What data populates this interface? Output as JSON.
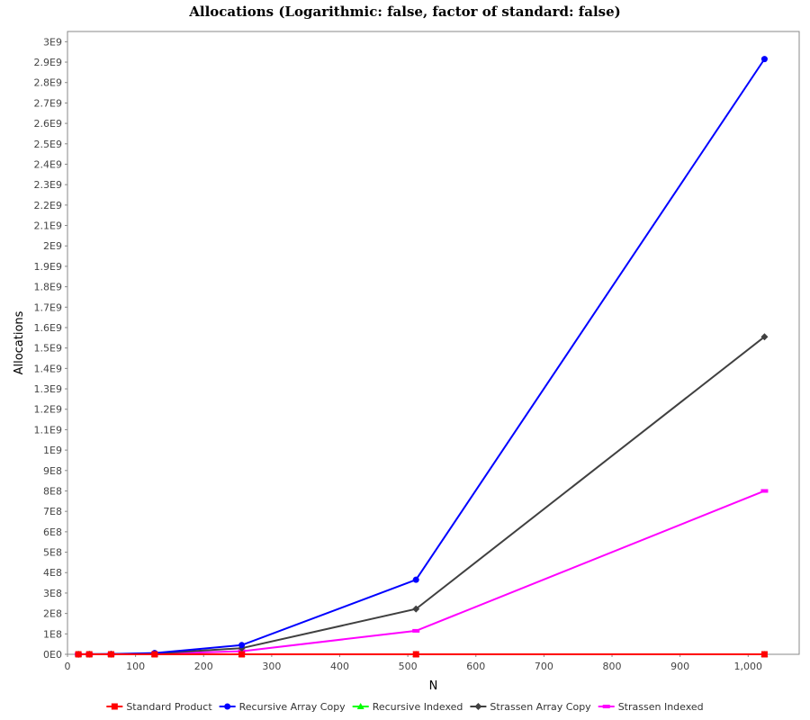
{
  "chart_data": {
    "type": "line",
    "title": "Allocations (Logarithmic: false, factor of standard: false)",
    "xlabel": "N",
    "ylabel": "Allocations",
    "xlim": [
      0,
      1075
    ],
    "ylim": [
      0,
      3050000000
    ],
    "x_ticks": [
      {
        "value": 0,
        "label": "0"
      },
      {
        "value": 100,
        "label": "100"
      },
      {
        "value": 200,
        "label": "200"
      },
      {
        "value": 300,
        "label": "300"
      },
      {
        "value": 400,
        "label": "400"
      },
      {
        "value": 500,
        "label": "500"
      },
      {
        "value": 600,
        "label": "600"
      },
      {
        "value": 700,
        "label": "700"
      },
      {
        "value": 800,
        "label": "800"
      },
      {
        "value": 900,
        "label": "900"
      },
      {
        "value": 1000,
        "label": "1,000"
      }
    ],
    "y_ticks": [
      {
        "value": 0,
        "label": "0E0"
      },
      {
        "value": 100000000,
        "label": "1E8"
      },
      {
        "value": 200000000,
        "label": "2E8"
      },
      {
        "value": 300000000,
        "label": "3E8"
      },
      {
        "value": 400000000,
        "label": "4E8"
      },
      {
        "value": 500000000,
        "label": "5E8"
      },
      {
        "value": 600000000,
        "label": "6E8"
      },
      {
        "value": 700000000,
        "label": "7E8"
      },
      {
        "value": 800000000,
        "label": "8E8"
      },
      {
        "value": 900000000,
        "label": "9E8"
      },
      {
        "value": 1000000000,
        "label": "1E9"
      },
      {
        "value": 1100000000,
        "label": "1.1E9"
      },
      {
        "value": 1200000000,
        "label": "1.2E9"
      },
      {
        "value": 1300000000,
        "label": "1.3E9"
      },
      {
        "value": 1400000000,
        "label": "1.4E9"
      },
      {
        "value": 1500000000,
        "label": "1.5E9"
      },
      {
        "value": 1600000000,
        "label": "1.6E9"
      },
      {
        "value": 1700000000,
        "label": "1.7E9"
      },
      {
        "value": 1800000000,
        "label": "1.8E9"
      },
      {
        "value": 1900000000,
        "label": "1.9E9"
      },
      {
        "value": 2000000000,
        "label": "2E9"
      },
      {
        "value": 2100000000,
        "label": "2.1E9"
      },
      {
        "value": 2200000000,
        "label": "2.2E9"
      },
      {
        "value": 2300000000,
        "label": "2.3E9"
      },
      {
        "value": 2400000000,
        "label": "2.4E9"
      },
      {
        "value": 2500000000,
        "label": "2.5E9"
      },
      {
        "value": 2600000000,
        "label": "2.6E9"
      },
      {
        "value": 2700000000,
        "label": "2.7E9"
      },
      {
        "value": 2800000000,
        "label": "2.8E9"
      },
      {
        "value": 2900000000,
        "label": "2.9E9"
      },
      {
        "value": 3000000000,
        "label": "3E9"
      }
    ],
    "grid": false,
    "legend_position": "bottom",
    "series": [
      {
        "name": "Standard Product",
        "color": "#ff0000",
        "marker": "square",
        "x": [
          16,
          32,
          64,
          128,
          256,
          512,
          1024
        ],
        "y": [
          0,
          0,
          0,
          0,
          0,
          0,
          0
        ]
      },
      {
        "name": "Recursive Array Copy",
        "color": "#0000ff",
        "marker": "circle",
        "x": [
          16,
          32,
          64,
          128,
          256,
          512,
          1024
        ],
        "y": [
          60000,
          500000,
          1000000,
          6000000,
          45000000,
          365000000,
          2915000000
        ]
      },
      {
        "name": "Recursive Indexed",
        "color": "#00ff00",
        "marker": "triangle",
        "x": [
          16,
          32,
          64,
          128,
          256,
          512,
          1024
        ],
        "y": [
          0,
          0,
          0,
          0,
          0,
          0,
          0
        ]
      },
      {
        "name": "Strassen Array Copy",
        "color": "#404040",
        "marker": "diamond",
        "x": [
          16,
          32,
          64,
          128,
          256,
          512,
          1024
        ],
        "y": [
          40000,
          300000,
          700000,
          4000000,
          30000000,
          222000000,
          1555000000
        ]
      },
      {
        "name": "Strassen Indexed",
        "color": "#ff00ff",
        "marker": "bar",
        "x": [
          16,
          32,
          64,
          128,
          256,
          512,
          1024
        ],
        "y": [
          20000,
          150000,
          400000,
          2000000,
          15000000,
          115000000,
          800000000
        ]
      }
    ]
  }
}
